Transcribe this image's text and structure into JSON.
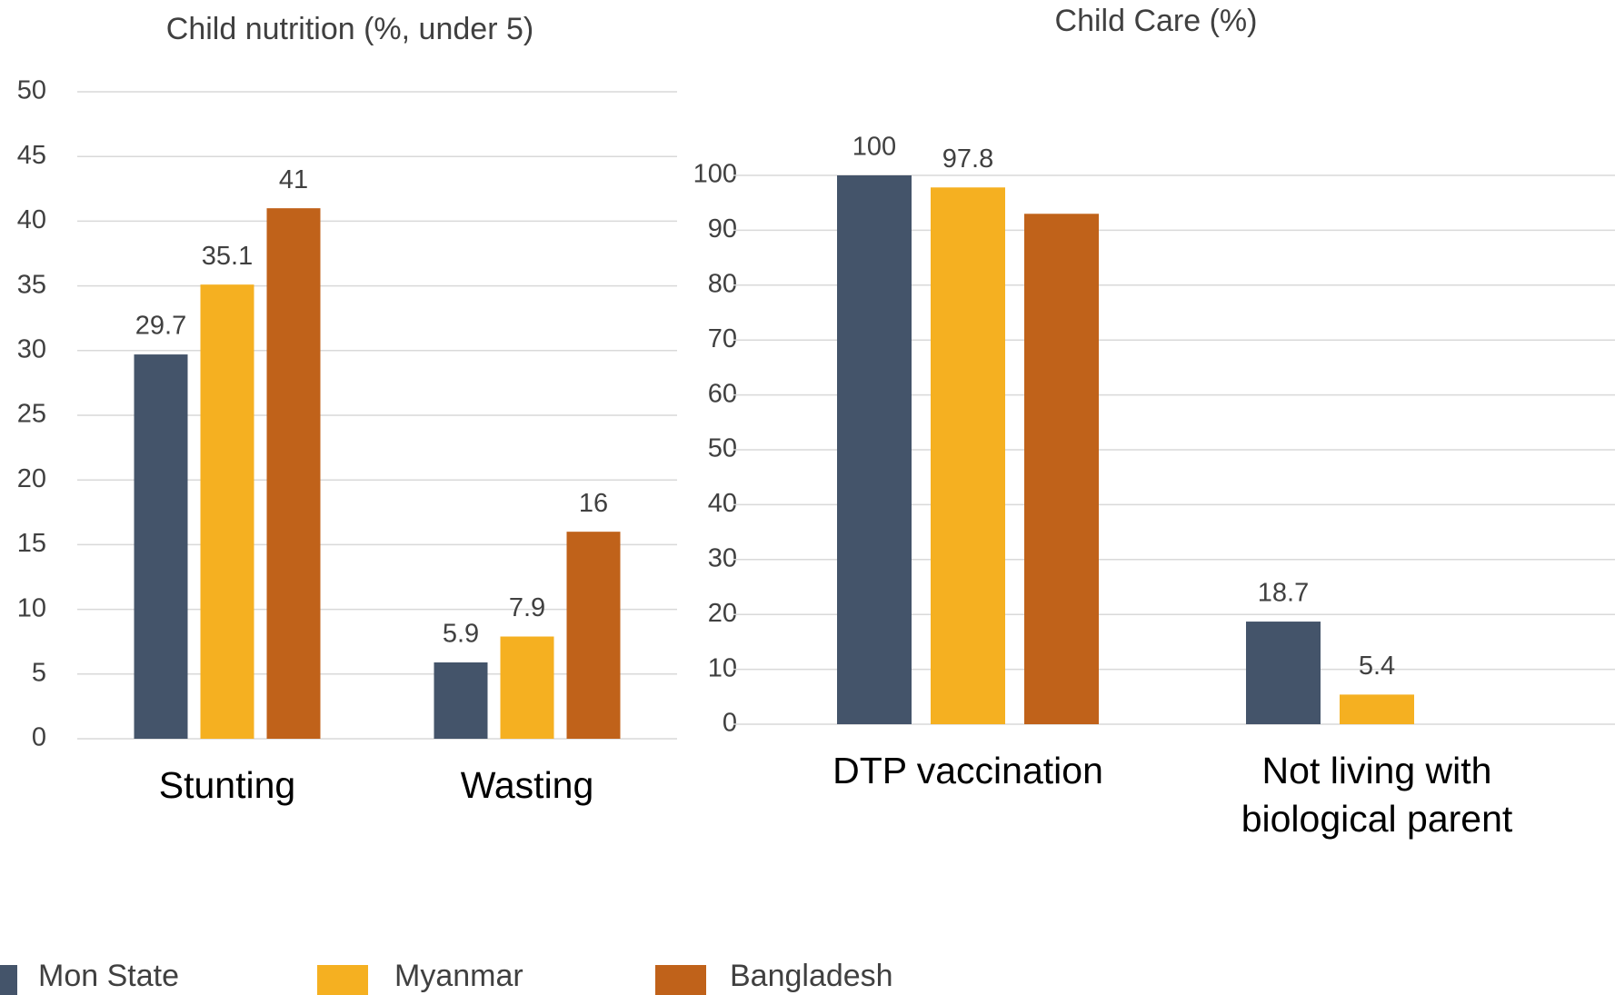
{
  "chart_data": [
    {
      "type": "bar",
      "title": "Child nutrition (%, under 5)",
      "categories": [
        "Stunting",
        "Wasting"
      ],
      "series": [
        {
          "name": "Mon State",
          "color": "#44546a",
          "values": [
            29.7,
            5.9
          ]
        },
        {
          "name": "Myanmar",
          "color": "#f5b021",
          "values": [
            35.1,
            7.9
          ]
        },
        {
          "name": "Bangladesh",
          "color": "#c0621a",
          "values": [
            41,
            16
          ]
        }
      ],
      "ylim": [
        0,
        50
      ],
      "yticks": [
        0,
        5,
        10,
        15,
        20,
        25,
        30,
        35,
        40,
        45,
        50
      ],
      "grid": true,
      "legend": "bottom"
    },
    {
      "type": "bar",
      "title": "Child Care (%)",
      "categories": [
        "DTP vaccination",
        "Not living with biological parent"
      ],
      "series": [
        {
          "color": "#44546a",
          "values": [
            100,
            18.7
          ],
          "value_labels": [
            "100",
            "18.7"
          ]
        },
        {
          "color": "#f5b021",
          "values": [
            97.8,
            5.4
          ],
          "value_labels": [
            "97.8",
            "5.4"
          ]
        },
        {
          "color": "#c0621a",
          "values": [
            93,
            null
          ],
          "value_labels": [
            null,
            null
          ]
        }
      ],
      "ylim": [
        0,
        100
      ],
      "yticks": [
        0,
        10,
        20,
        30,
        40,
        50,
        60,
        70,
        80,
        90,
        100
      ],
      "grid": true
    }
  ]
}
